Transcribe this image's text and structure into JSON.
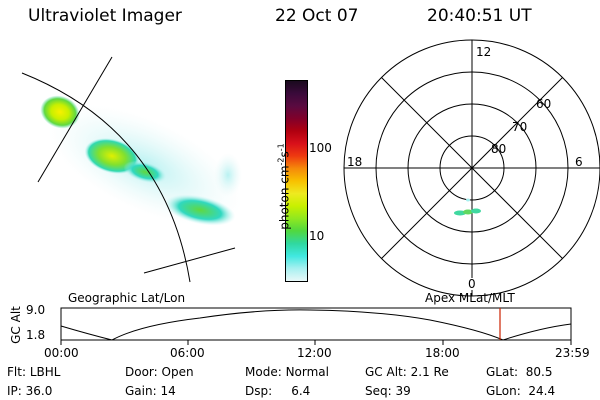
{
  "header": {
    "instrument": "Ultraviolet Imager",
    "date": "22 Oct 07",
    "time": "20:40:51 UT"
  },
  "colorbar": {
    "label": "photon cm",
    "label_sup1": "-2",
    "label_mid": "s",
    "label_sup2": "-1",
    "ticks": [
      "100",
      "10"
    ],
    "colors": [
      "#1a0a1e",
      "#3a0a3a",
      "#5a0a40",
      "#80002a",
      "#b00010",
      "#d8101a",
      "#ee3a10",
      "#f58a0a",
      "#f8c000",
      "#eeea20",
      "#c8f000",
      "#90e820",
      "#50d840",
      "#30d8a0",
      "#40e8e0",
      "#a8f0f0",
      "#e8f8f8"
    ]
  },
  "polar": {
    "mlt_labels": {
      "top": "12",
      "left": "18",
      "right": "6",
      "bottom": "0"
    },
    "lat_labels": [
      "60",
      "70",
      "80"
    ]
  },
  "timeline": {
    "y_axis_title": "GC Alt",
    "y_ticks": [
      "9.0",
      "1.8"
    ],
    "left_title": "Geographic Lat/Lon",
    "right_title": "Apex MLat/MLT",
    "x_ticks": [
      "00:00",
      "06:00",
      "12:00",
      "18:00",
      "23:59"
    ]
  },
  "status": {
    "filter_label": "Flt:",
    "filter_value": "LBHL",
    "ip_label": "IP:",
    "ip_value": "36.0",
    "door_label": "Door:",
    "door_value": "Open",
    "gain_label": "Gain:",
    "gain_value": "14",
    "mode_label": "Mode:",
    "mode_value": "Normal",
    "dsp_label": "Dsp:",
    "dsp_value": "6.4",
    "gcalt_label": "GC Alt:",
    "gcalt_value": "2.1 Re",
    "seq_label": "Seq:",
    "seq_value": "39",
    "glat_label": "GLat:",
    "glat_value": "80.5",
    "glon_label": "GLon:",
    "glon_value": "24.4"
  },
  "colors": {
    "marker": "#cc2200"
  }
}
